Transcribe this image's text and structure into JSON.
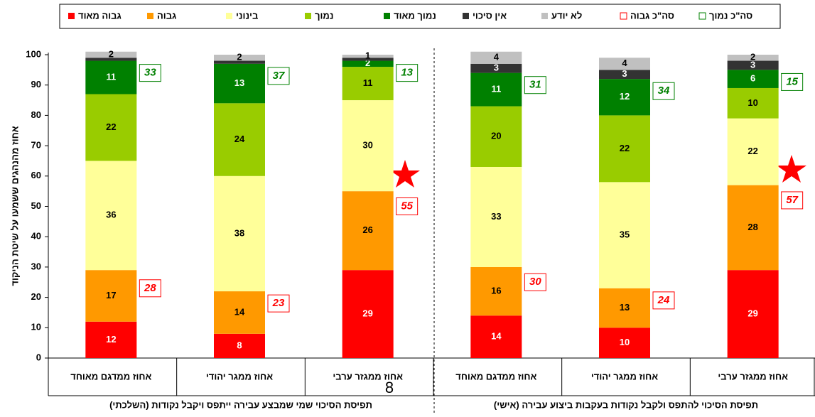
{
  "chart_data": {
    "type": "stacked_bar",
    "ylabel": "אחוז מהנהגים ששמעו על שיטת הניקוד",
    "categories": [
      "אחוז ממדגם מאוחד",
      "אחוז ממגר יהודי",
      "אחוז ממגזר ערבי",
      "אחוז ממדגם מאוחד",
      "אחוז ממגר יהודי",
      "אחוז ממגזר ערבי"
    ],
    "groups": [
      "תפיסת הסיכוי שמי שמבצע עבירה ייתפס ויקבל נקודות (השלכתי)",
      "תפיסת הסיכוי להתפס ולקבל נקודות בעקבות ביצוע עבירה (אישי)"
    ],
    "annotations": [
      "8"
    ],
    "ylim": [
      0,
      100
    ],
    "yticks": [
      0,
      10,
      20,
      30,
      40,
      50,
      60,
      70,
      80,
      90,
      100
    ],
    "series": [
      {
        "name": "גבוה מאוד",
        "color": "#ff0000",
        "values": [
          12,
          8,
          29,
          14,
          10,
          29
        ],
        "value_labels": [
          "12",
          "8",
          "29",
          "14",
          "10",
          "29"
        ]
      },
      {
        "name": "גבוה",
        "color": "#ff9900",
        "values": [
          17,
          14,
          26,
          16,
          13,
          28
        ],
        "value_labels": [
          "17",
          "14",
          "26",
          "16",
          "13",
          "28"
        ]
      },
      {
        "name": "בינוני",
        "color": "#ffff99",
        "values": [
          36,
          38,
          30,
          33,
          35,
          22
        ],
        "value_labels": [
          "36",
          "38",
          "30",
          "33",
          "35",
          "22"
        ]
      },
      {
        "name": "נמוך",
        "color": "#99cc00",
        "values": [
          22,
          24,
          11,
          20,
          22,
          10
        ],
        "value_labels": [
          "22",
          "24",
          "11",
          "20",
          "22",
          "10"
        ]
      },
      {
        "name": "נמוך מאוד",
        "color": "#008000",
        "values": [
          11,
          13,
          2,
          11,
          12,
          6
        ],
        "value_labels": [
          "11",
          "13",
          "2",
          "11",
          "12",
          "6"
        ]
      },
      {
        "name": "אין סיכוי",
        "color": "#333333",
        "values": [
          1,
          1,
          1,
          3,
          3,
          3
        ],
        "value_labels": [
          null,
          null,
          null,
          "3",
          "3",
          "3"
        ]
      },
      {
        "name": "לא יודע",
        "color": "#c0c0c0",
        "values": [
          2,
          2,
          1,
          4,
          4,
          2
        ],
        "value_labels": [
          "2",
          "2",
          "1",
          "4",
          "4",
          "2"
        ]
      }
    ],
    "totals": [
      {
        "name": "סה\"כ גבוה",
        "color": "#ff0000",
        "values": [
          28,
          23,
          55,
          30,
          24,
          57
        ]
      },
      {
        "name": "סה\"כ נמוך",
        "color": "#008000",
        "values": [
          33,
          37,
          13,
          31,
          34,
          15
        ]
      }
    ]
  }
}
